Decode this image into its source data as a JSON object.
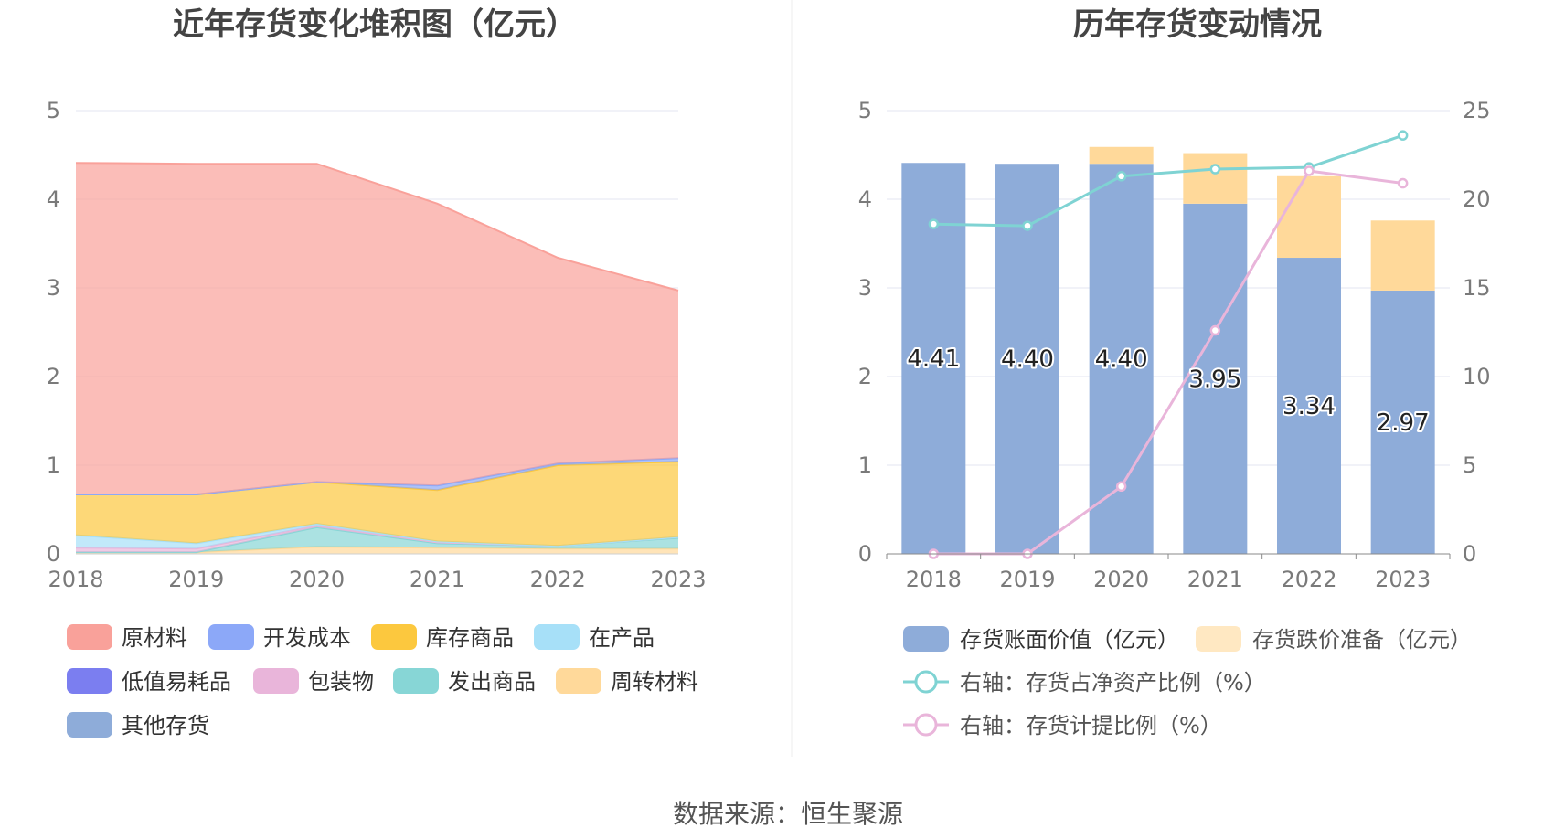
{
  "source_label": "数据来源：恒生聚源",
  "chart_data": [
    {
      "type": "area",
      "title": "近年存货变化堆积图（亿元）",
      "x": [
        "2018",
        "2019",
        "2020",
        "2021",
        "2022",
        "2023"
      ],
      "ylim": [
        0,
        5
      ],
      "yticks": [
        "0",
        "1",
        "2",
        "3",
        "4",
        "5"
      ],
      "grid": true,
      "legend_position": "bottom",
      "legend": [
        "原材料",
        "开发成本",
        "库存商品",
        "在产品",
        "低值易耗品",
        "包装物",
        "发出商品",
        "周转材料",
        "其他存货"
      ],
      "legend_colors": [
        "#f9a19a",
        "#8ca8f8",
        "#fcc83e",
        "#a7e0f8",
        "#7b7ef0",
        "#e9b5da",
        "#87d6d6",
        "#ffd99a",
        "#8eacd9"
      ],
      "series": [
        {
          "name": "周转材料",
          "color": "#ffd99a",
          "values": [
            0.02,
            0.02,
            0.08,
            0.07,
            0.06,
            0.06
          ]
        },
        {
          "name": "发出商品",
          "color": "#87d6d6",
          "values": [
            0.0,
            0.0,
            0.22,
            0.05,
            0.03,
            0.12
          ]
        },
        {
          "name": "包装物",
          "color": "#e9b5da",
          "values": [
            0.05,
            0.04,
            0.02,
            0.01,
            0.0,
            0.01
          ]
        },
        {
          "name": "在产品",
          "color": "#a7e0f8",
          "values": [
            0.14,
            0.06,
            0.02,
            0.01,
            0.0,
            0.0
          ]
        },
        {
          "name": "库存商品",
          "color": "#fcc83e",
          "values": [
            0.46,
            0.55,
            0.47,
            0.58,
            0.91,
            0.85
          ]
        },
        {
          "name": "开发成本",
          "color": "#8ca8f8",
          "values": [
            0.0,
            0.0,
            0.0,
            0.05,
            0.02,
            0.04
          ]
        },
        {
          "name": "原材料",
          "color": "#f9a19a",
          "values": [
            3.74,
            3.73,
            3.59,
            3.18,
            2.32,
            1.89
          ]
        }
      ]
    },
    {
      "type": "bar",
      "title": "历年存货变动情况",
      "categories": [
        "2018",
        "2019",
        "2020",
        "2021",
        "2022",
        "2023"
      ],
      "ylim": [
        0,
        5
      ],
      "yticks": [
        "0",
        "1",
        "2",
        "3",
        "4",
        "5"
      ],
      "y2lim": [
        0,
        25
      ],
      "y2ticks": [
        "0",
        "5",
        "10",
        "15",
        "20",
        "25"
      ],
      "grid": true,
      "legend_position": "bottom",
      "series": [
        {
          "name": "存货账面价值（亿元）",
          "color": "#8eacd9",
          "values": [
            4.41,
            4.4,
            4.4,
            3.95,
            3.34,
            2.97
          ],
          "labels": [
            "4.41",
            "4.40",
            "4.40",
            "3.95",
            "3.34",
            "2.97"
          ]
        },
        {
          "name": "存货跌价准备（亿元）",
          "color": "#ffd99a",
          "values": [
            0.0,
            0.0,
            0.19,
            0.57,
            0.92,
            0.79
          ]
        },
        {
          "name": "右轴：存货占净资产比例（%）",
          "color": "#7fd3d3",
          "type": "line",
          "axis": "right",
          "values": [
            18.6,
            18.5,
            21.3,
            21.7,
            21.8,
            23.6
          ]
        },
        {
          "name": "右轴：存货计提比例（%）",
          "color": "#e9b5da",
          "type": "line",
          "axis": "right",
          "values": [
            0.0,
            0.0,
            3.8,
            12.6,
            21.6,
            20.9
          ]
        }
      ]
    }
  ]
}
